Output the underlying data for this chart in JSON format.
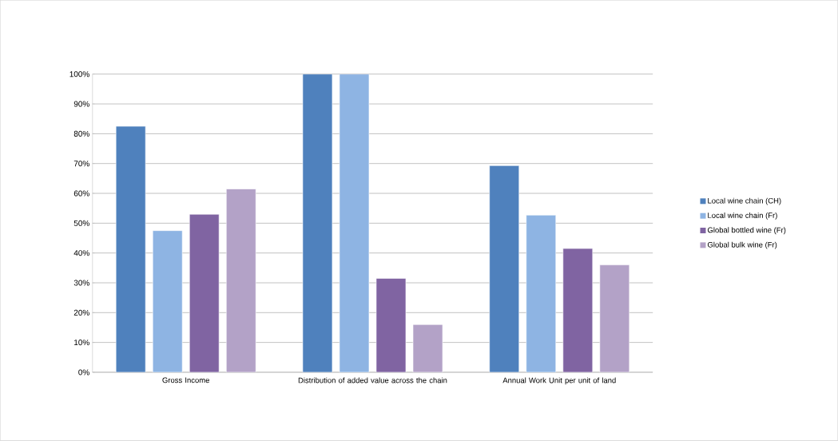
{
  "chart_data": {
    "type": "bar",
    "categories": [
      "Gross Income",
      "Distribution of added value across the chain",
      "Annual Work Unit per unit of land"
    ],
    "series": [
      {
        "name": "Local wine chain (CH)",
        "color": "#4f81bd",
        "values": [
          82.5,
          100,
          69.3
        ]
      },
      {
        "name": "Local wine chain (Fr)",
        "color": "#8eb4e3",
        "values": [
          47.5,
          100,
          52.7
        ]
      },
      {
        "name": "Global bottled wine (Fr)",
        "color": "#8064a2",
        "values": [
          53,
          31.5,
          41.5
        ]
      },
      {
        "name": "Global bulk wine (Fr)",
        "color": "#b3a2c7",
        "values": [
          61.5,
          16,
          36
        ]
      }
    ],
    "ylim": [
      0,
      100
    ],
    "yticks": [
      {
        "value": 0,
        "label": "0%"
      },
      {
        "value": 10,
        "label": "10%"
      },
      {
        "value": 20,
        "label": "20%"
      },
      {
        "value": 30,
        "label": "30%"
      },
      {
        "value": 40,
        "label": "40%"
      },
      {
        "value": 50,
        "label": "50%"
      },
      {
        "value": 60,
        "label": "60%"
      },
      {
        "value": 70,
        "label": "70%"
      },
      {
        "value": 80,
        "label": "80%"
      },
      {
        "value": 90,
        "label": "90%"
      },
      {
        "value": 100,
        "label": "100%"
      }
    ],
    "grid": "y",
    "legend": "right"
  }
}
